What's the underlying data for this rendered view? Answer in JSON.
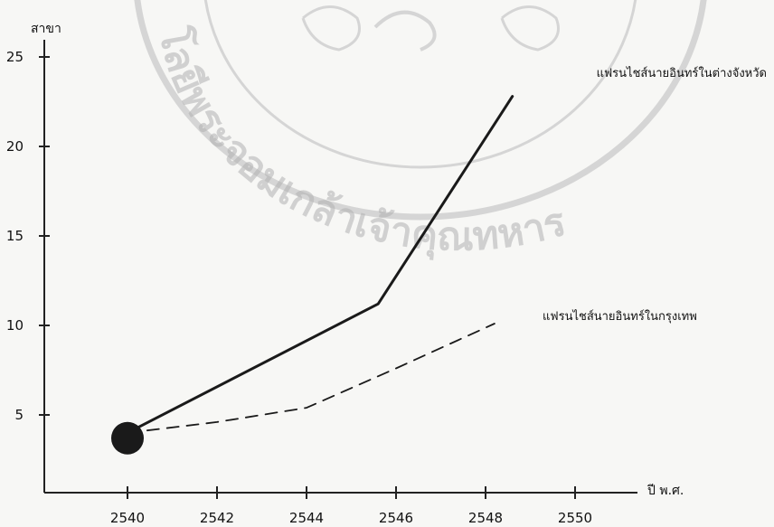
{
  "chart_data": {
    "type": "line",
    "title": "",
    "xlabel": "ปี พ.ศ.",
    "ylabel": "สาขา",
    "xlim": [
      2539.2,
      2551.2
    ],
    "ylim": [
      2,
      27
    ],
    "x_ticks": [
      2540,
      2542,
      2544,
      2546,
      2548,
      2550
    ],
    "y_ticks": [
      5,
      10,
      15,
      20,
      25
    ],
    "series": [
      {
        "name": "แฟรนไชส์นายอินทร์ในต่างจังหวัด",
        "style": "solid",
        "color": "#1a1a1a",
        "points": [
          [
            2540,
            4
          ],
          [
            2545.6,
            11.2
          ],
          [
            2548.6,
            22.8
          ]
        ]
      },
      {
        "name": "แฟรนไชส์นายอินทร์ในกรุงเทพ",
        "style": "dashed",
        "color": "#1a1a1a",
        "points": [
          [
            2540,
            4
          ],
          [
            2542,
            4.6
          ],
          [
            2544,
            5.4
          ],
          [
            2546,
            7.6
          ],
          [
            2548.2,
            10.1
          ]
        ]
      }
    ],
    "start_marker": {
      "x": 2540,
      "y": 3.7,
      "color": "#1a1a1a"
    },
    "grid": false,
    "legend": "inline labels at line ends"
  },
  "watermark": {
    "text": "โลยีพระจอมเกล้าเจ้าคุณทหาร",
    "color": "#b9b9b9"
  }
}
